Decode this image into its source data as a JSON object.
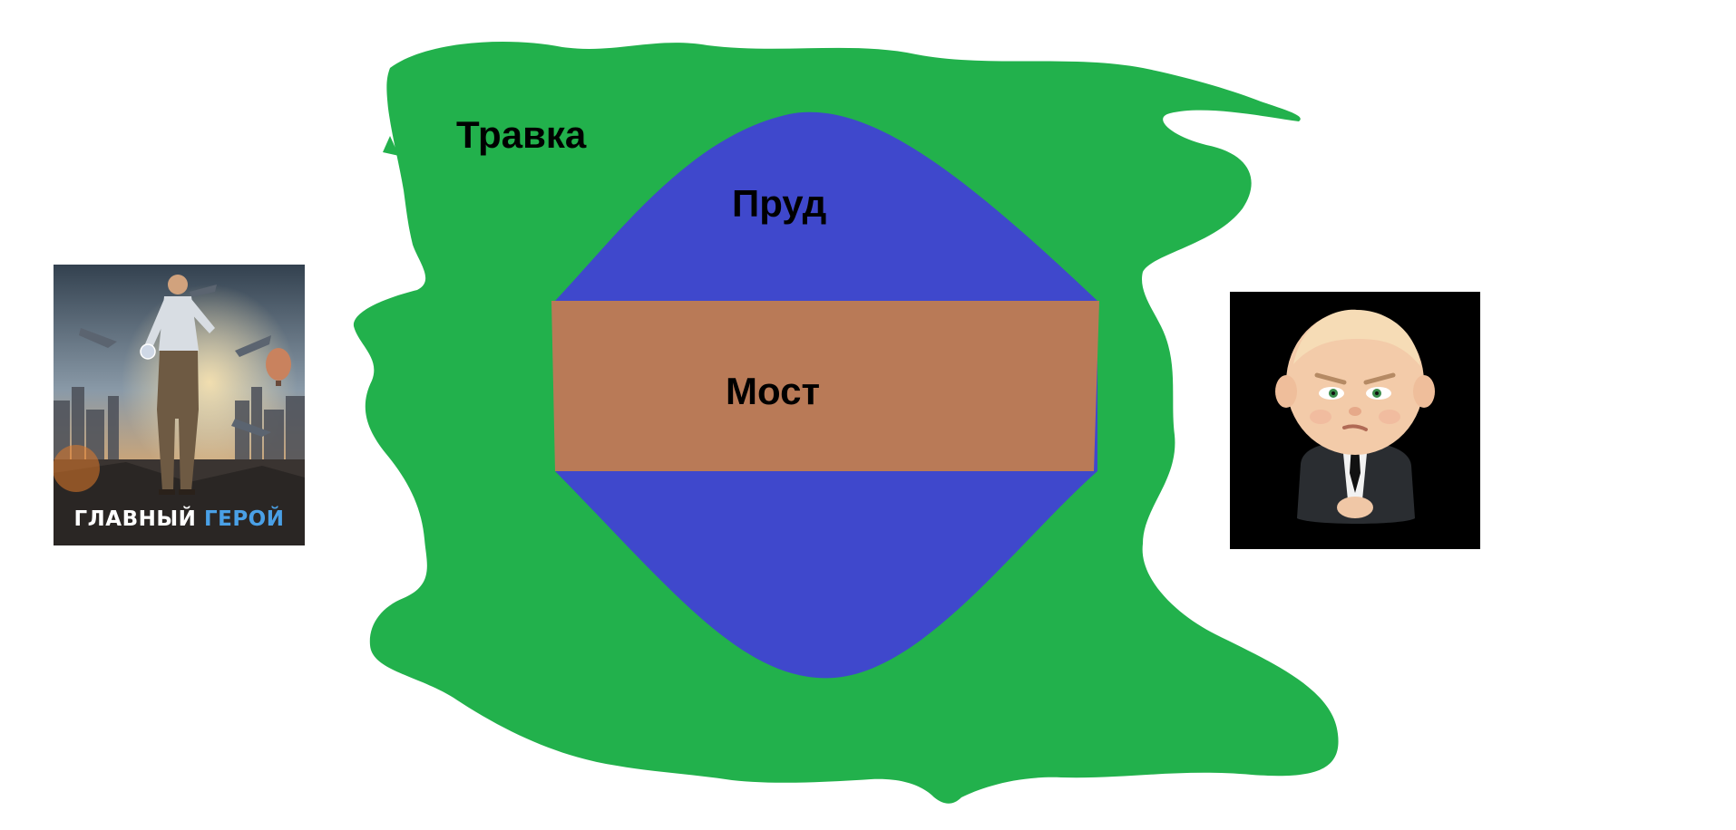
{
  "colors": {
    "grass": "#22b14c",
    "pond": "#3f48cc",
    "bridge": "#b97a57",
    "background": "#ffffff"
  },
  "labels": {
    "grass": "Травка",
    "pond": "Пруд",
    "bridge": "Мост"
  },
  "poster": {
    "caption_part1": "ГЛАВНЫЙ",
    "caption_part2": "ГЕРОЙ"
  },
  "icons": {
    "left": "movie-poster-hero-icon",
    "right": "boss-baby-icon"
  }
}
